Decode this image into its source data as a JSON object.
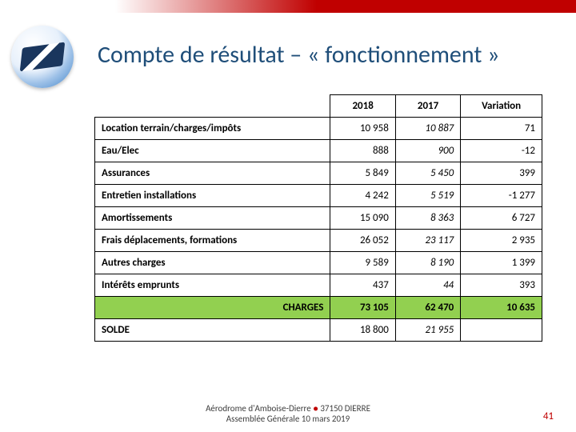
{
  "title": "Compte de résultat – « fonctionnement »",
  "columns": {
    "c1": "2018",
    "c2": "2017",
    "c3": "Variation"
  },
  "rows": [
    {
      "label": "Location terrain/charges/impôts",
      "v1": "10 958",
      "v2": "10 887",
      "v3": "71"
    },
    {
      "label": "Eau/Elec",
      "v1": "888",
      "v2": "900",
      "v3": "-12"
    },
    {
      "label": "Assurances",
      "v1": "5 849",
      "v2": "5 450",
      "v3": "399"
    },
    {
      "label": "Entretien installations",
      "v1": "4 242",
      "v2": "5 519",
      "v3": "-1 277"
    },
    {
      "label": "Amortissements",
      "v1": "15 090",
      "v2": "8 363",
      "v3": "6 727"
    },
    {
      "label": "Frais déplacements, formations",
      "v1": "26 052",
      "v2": "23 117",
      "v3": "2 935"
    },
    {
      "label": "Autres charges",
      "v1": "9 589",
      "v2": "8 190",
      "v3": "1 399"
    },
    {
      "label": "Intérêts emprunts",
      "v1": "437",
      "v2": "44",
      "v3": "393"
    }
  ],
  "charges": {
    "label": "CHARGES",
    "v1": "73 105",
    "v2": "62 470",
    "v3": "10 635"
  },
  "solde": {
    "label": "SOLDE",
    "v1": "18 800",
    "v2": "21 955",
    "v3": ""
  },
  "footer": {
    "line1a": "Aérodrome d'Amboise-Dierre ",
    "line1b": " 37150 DIERRE",
    "line2": "Assemblée Générale 10 mars 2019"
  },
  "page_number": "41",
  "colors": {
    "title_color": "#1f4e79",
    "accent_red": "#c00000",
    "charges_bg": "#92d050",
    "border": "#000000"
  }
}
